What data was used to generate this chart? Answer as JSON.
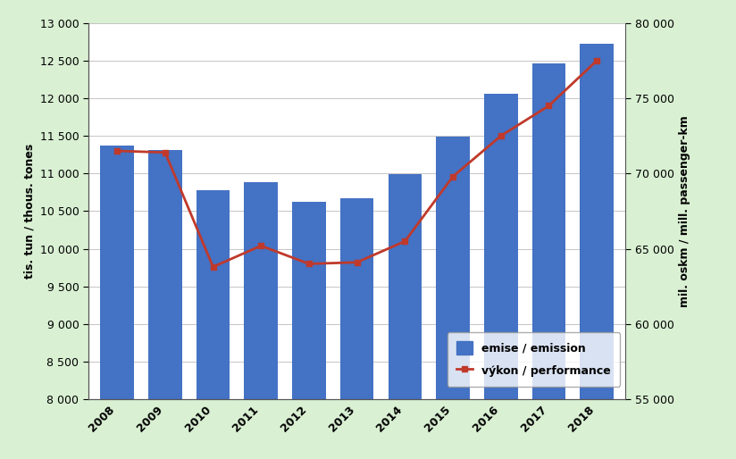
{
  "years": [
    2008,
    2009,
    2010,
    2011,
    2012,
    2013,
    2014,
    2015,
    2016,
    2017,
    2018
  ],
  "emissions": [
    11370,
    11310,
    10780,
    10890,
    10620,
    10670,
    10990,
    11490,
    12060,
    12460,
    12720
  ],
  "performance": [
    71500,
    71400,
    63800,
    65200,
    64000,
    64100,
    65500,
    69800,
    72500,
    74500,
    77500
  ],
  "bar_color": "#4472c4",
  "line_color": "#c0392b",
  "background_color": "#d9f0d3",
  "plot_background": "#ffffff",
  "ylabel_left": "tis. tun / thous. tones",
  "ylabel_right": "mil. oskm / mill. passenger-km",
  "ylim_left": [
    8000,
    13000
  ],
  "ylim_right": [
    55000,
    80000
  ],
  "yticks_left": [
    8000,
    8500,
    9000,
    9500,
    10000,
    10500,
    11000,
    11500,
    12000,
    12500,
    13000
  ],
  "yticks_right": [
    55000,
    60000,
    65000,
    70000,
    75000,
    80000
  ],
  "legend_emission": "emise / emission",
  "legend_performance": "výkon / performance",
  "axis_fontsize": 9,
  "tick_fontsize": 9,
  "figsize": [
    8.24,
    5.14
  ],
  "dpi": 100
}
